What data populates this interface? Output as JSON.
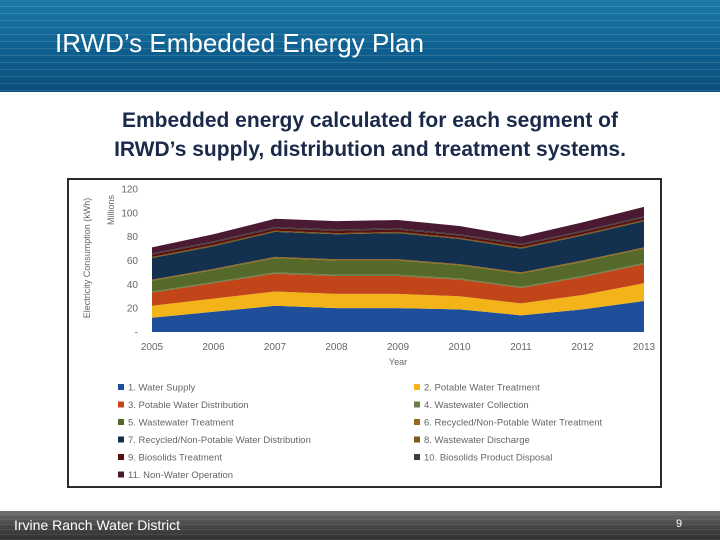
{
  "slide": {
    "title": "IRWD’s Embedded Energy Plan",
    "subtitle_line1": "Embedded energy calculated for each segment of",
    "subtitle_line2": "IRWD’s supply, distribution and treatment systems.",
    "footer_org": "Irvine Ranch Water District",
    "page_number": "9"
  },
  "chart_data": {
    "type": "area",
    "stacked": true,
    "xlabel": "Year",
    "ylabel": "Electricity Consumption (kWh)",
    "yunit_label": "Millions",
    "ylim": [
      0,
      120
    ],
    "yticks": [
      "-",
      "20",
      "40",
      "60",
      "80",
      "100",
      "120"
    ],
    "x": [
      "2005",
      "2006",
      "2007",
      "2008",
      "2009",
      "2010",
      "2011",
      "2012",
      "2013"
    ],
    "legend_position": "bottom",
    "grid": false,
    "series": [
      {
        "name": "1. Water Supply",
        "color": "#1f4e9a",
        "values": [
          12,
          17,
          22,
          20,
          20,
          19,
          14,
          19,
          26
        ]
      },
      {
        "name": "2. Potable Water Treatment",
        "color": "#f2b418",
        "values": [
          10,
          11,
          12,
          12,
          12,
          11,
          10,
          12,
          15
        ]
      },
      {
        "name": "3. Potable Water Distribution",
        "color": "#c2451a",
        "values": [
          11,
          13,
          15,
          15,
          15,
          14,
          13,
          15,
          16
        ]
      },
      {
        "name": "4. Wastewater Collection",
        "color": "#6c7f49",
        "values": [
          1,
          1,
          1,
          1,
          1,
          1,
          1,
          1,
          1
        ]
      },
      {
        "name": "5. Wastewater Treatment",
        "color": "#556a2a",
        "values": [
          9,
          10,
          12,
          12,
          12,
          11,
          11,
          12,
          12
        ]
      },
      {
        "name": "6. Recycled/Non-Potable Water Treatment",
        "color": "#9a6a1c",
        "values": [
          1,
          1,
          1,
          1,
          1,
          1,
          1,
          1,
          1
        ]
      },
      {
        "name": "7. Recycled/Non-Potable Water Distribution",
        "color": "#14304f",
        "values": [
          18,
          19,
          21,
          21,
          22,
          21,
          20,
          21,
          22
        ]
      },
      {
        "name": "8. Wastewater Discharge",
        "color": "#7a5a14",
        "values": [
          1,
          1,
          1,
          1,
          1,
          1,
          1,
          1,
          1
        ]
      },
      {
        "name": "9. Biosolids Treatment",
        "color": "#5a1010",
        "values": [
          2,
          2,
          2,
          2,
          2,
          2,
          2,
          2,
          2
        ]
      },
      {
        "name": "10. Biosolids Product Disposal",
        "color": "#3e3e3e",
        "values": [
          1,
          1,
          1,
          1,
          1,
          1,
          1,
          1,
          1
        ]
      },
      {
        "name": "11. Non-Water Operation",
        "color": "#4a1a33",
        "values": [
          5,
          6,
          7,
          7,
          7,
          7,
          6,
          7,
          8
        ]
      }
    ]
  }
}
